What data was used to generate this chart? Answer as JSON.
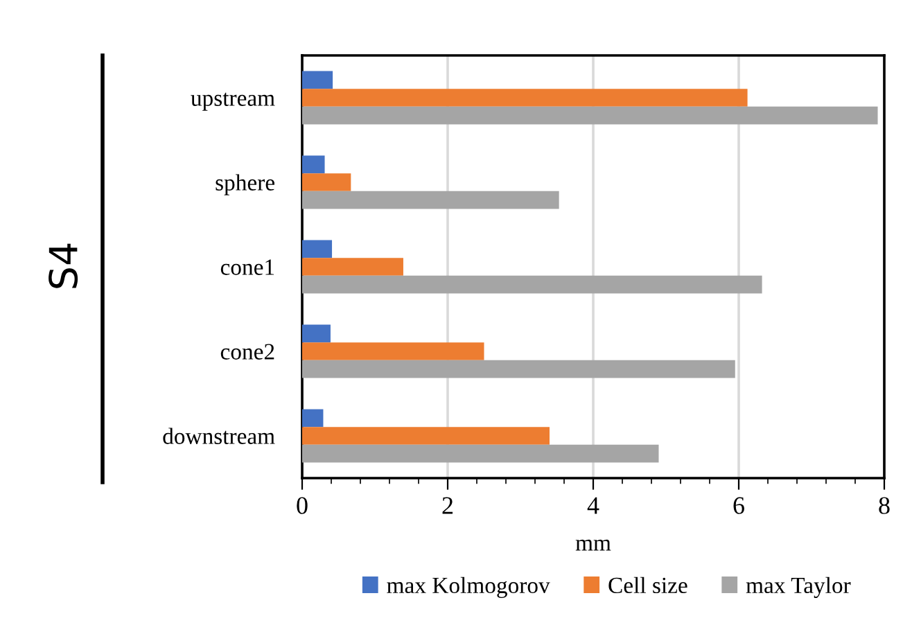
{
  "chart_data": {
    "type": "bar",
    "orientation": "horizontal",
    "ylabel": "S4",
    "xlabel": "mm",
    "categories": [
      "upstream",
      "sphere",
      "cone1",
      "cone2",
      "downstream"
    ],
    "series": [
      {
        "name": "max Kolmogorov",
        "color": "#4472c4",
        "values": [
          0.42,
          0.31,
          0.41,
          0.39,
          0.29
        ]
      },
      {
        "name": "Cell size",
        "color": "#ed7d31",
        "values": [
          6.12,
          0.67,
          1.39,
          2.5,
          3.4
        ]
      },
      {
        "name": "max Taylor",
        "color": "#a5a5a5",
        "values": [
          7.91,
          3.53,
          6.32,
          5.95,
          4.9
        ]
      }
    ],
    "xlim": [
      0,
      8
    ],
    "xticks": [
      0,
      {
        "value": 0.4,
        "label": null
      },
      {
        "value": 0.8,
        "label": null
      },
      {
        "value": 1.2,
        "label": null
      },
      {
        "value": 1.6,
        "label": null
      },
      2,
      {
        "value": 2.4,
        "label": null
      },
      {
        "value": 2.8,
        "label": null
      },
      {
        "value": 3.2,
        "label": null
      },
      {
        "value": 3.6,
        "label": null
      },
      4,
      {
        "value": 4.4,
        "label": null
      },
      {
        "value": 4.8,
        "label": null
      },
      {
        "value": 5.2,
        "label": null
      },
      {
        "value": 5.6,
        "label": null
      },
      6,
      {
        "value": 6.4,
        "label": null
      },
      {
        "value": 6.8,
        "label": null
      },
      {
        "value": 7.2,
        "label": null
      },
      {
        "value": 7.6,
        "label": null
      },
      8
    ],
    "grid": "x",
    "legend": "bottom"
  }
}
